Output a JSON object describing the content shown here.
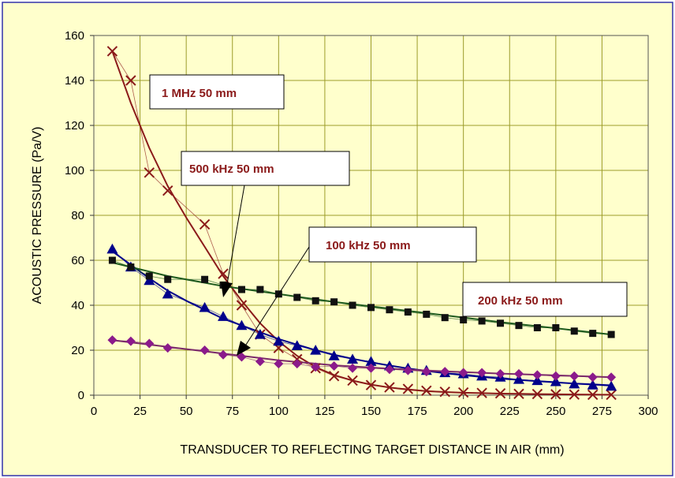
{
  "colors": {
    "background": "#FFFFCC",
    "frame": "#3333AA",
    "grid": "#9c9c2a",
    "series_1mhz": "#8B1A1A",
    "series_500khz": "#00008B",
    "series_100khz": "#7B2A6A",
    "series_100khz_marker": "#8B1A8B",
    "series_200khz": "#1E5A1E",
    "series_200khz_marker": "#111111",
    "annotation_text": "#8B1A1A"
  },
  "chart_data": {
    "type": "scatter",
    "xlabel": "TRANSDUCER TO REFLECTING TARGET DISTANCE IN AIR (mm)",
    "ylabel": "ACOUSTIC PRESSURE (Pa/V)",
    "xlim": [
      0,
      300
    ],
    "ylim": [
      0,
      160
    ],
    "xticks": [
      "0",
      "25",
      "50",
      "75",
      "100",
      "125",
      "150",
      "175",
      "200",
      "225",
      "250",
      "275",
      "300"
    ],
    "yticks": [
      "0",
      "20",
      "40",
      "60",
      "80",
      "100",
      "120",
      "140",
      "160"
    ],
    "grid": true,
    "series": [
      {
        "key": "1mhz",
        "marker": "x",
        "x": [
          10,
          20,
          30,
          40,
          60,
          70,
          80,
          90,
          100,
          110,
          120,
          130,
          140,
          150,
          160,
          170,
          180,
          190,
          200,
          210,
          220,
          230,
          240,
          250,
          260,
          270,
          280
        ],
        "y": [
          153,
          140,
          99,
          91,
          76,
          54,
          40,
          27,
          21,
          16,
          12,
          8.5,
          6.5,
          4.5,
          3.5,
          2.8,
          2,
          1.5,
          1.2,
          1,
          0.8,
          0.6,
          0.5,
          0.4,
          0.3,
          0.2,
          0.2
        ],
        "fit_x": [
          10,
          20,
          30,
          40,
          50,
          60,
          70,
          80,
          90,
          100,
          110,
          120,
          130,
          140,
          150,
          160,
          170,
          180,
          190,
          200,
          210,
          220,
          230,
          240,
          250,
          260,
          270,
          280
        ],
        "fit_y": [
          153,
          130,
          110,
          93,
          79,
          66,
          53,
          42,
          32,
          24,
          17.5,
          12.5,
          9,
          6.5,
          4.7,
          3.4,
          2.5,
          1.8,
          1.4,
          1.1,
          0.9,
          0.7,
          0.6,
          0.5,
          0.4,
          0.3,
          0.25,
          0.2
        ]
      },
      {
        "key": "500khz",
        "marker": "triangle",
        "x": [
          10,
          20,
          30,
          40,
          60,
          70,
          80,
          90,
          100,
          110,
          120,
          130,
          140,
          150,
          160,
          170,
          180,
          190,
          200,
          210,
          220,
          230,
          240,
          250,
          260,
          270,
          280
        ],
        "y": [
          65,
          57,
          51,
          45,
          39,
          35,
          31,
          27,
          24,
          22,
          20,
          17.5,
          16,
          15,
          13,
          12,
          11,
          10,
          9.5,
          8.5,
          8,
          7,
          6.5,
          6,
          5,
          4.5,
          4
        ],
        "fit_x": [
          10,
          20,
          30,
          40,
          50,
          60,
          70,
          80,
          90,
          100,
          110,
          120,
          130,
          140,
          150,
          160,
          170,
          180,
          190,
          200,
          210,
          220,
          230,
          240,
          250,
          260,
          270,
          280
        ],
        "fit_y": [
          64,
          58,
          52,
          46.5,
          42,
          38,
          34,
          31,
          28,
          25,
          22.5,
          20,
          18,
          16.2,
          14.6,
          13.2,
          11.9,
          10.8,
          9.8,
          8.9,
          8.1,
          7.4,
          6.8,
          6.2,
          5.7,
          5.2,
          4.8,
          4.4
        ]
      },
      {
        "key": "100khz",
        "marker": "diamond",
        "x": [
          10,
          20,
          30,
          40,
          60,
          70,
          80,
          90,
          100,
          110,
          120,
          130,
          140,
          150,
          160,
          170,
          180,
          190,
          200,
          210,
          220,
          230,
          240,
          250,
          260,
          270,
          280
        ],
        "y": [
          24.5,
          24,
          23,
          21,
          20,
          18,
          17,
          15,
          14,
          14,
          12.5,
          13,
          12,
          12,
          11.5,
          11,
          10.5,
          10.5,
          10,
          10,
          9.5,
          9.5,
          9,
          8.5,
          8.5,
          8,
          8
        ],
        "fit_x": [
          10,
          40,
          70,
          100,
          130,
          160,
          190,
          220,
          250,
          280
        ],
        "fit_y": [
          24.5,
          21.5,
          18.5,
          15.5,
          13.3,
          11.8,
          10.6,
          9.6,
          8.8,
          8
        ]
      },
      {
        "key": "200khz",
        "marker": "square",
        "x": [
          10,
          20,
          30,
          40,
          60,
          70,
          80,
          90,
          100,
          110,
          120,
          130,
          140,
          150,
          160,
          170,
          180,
          190,
          200,
          210,
          220,
          230,
          240,
          250,
          260,
          270,
          280
        ],
        "y": [
          60,
          57,
          53,
          51.5,
          51.5,
          49,
          47,
          47,
          45,
          43.5,
          42,
          41.5,
          40,
          39,
          38,
          37,
          36,
          34.5,
          33.5,
          33,
          32,
          31,
          30,
          30,
          28.5,
          27.5,
          27
        ],
        "fit_x": [
          10,
          40,
          70,
          100,
          130,
          160,
          190,
          220,
          250,
          280
        ],
        "fit_y": [
          59,
          53,
          48.5,
          45,
          41.5,
          38.5,
          35.5,
          32.5,
          29.8,
          27
        ]
      }
    ],
    "annotations": [
      {
        "key": "1mhz",
        "text": "1 MHz 50 mm"
      },
      {
        "key": "500khz",
        "text": "500 kHz 50 mm"
      },
      {
        "key": "100khz",
        "text": "100 kHz 50 mm"
      },
      {
        "key": "200khz",
        "text": "200 kHz 50 mm"
      }
    ]
  }
}
